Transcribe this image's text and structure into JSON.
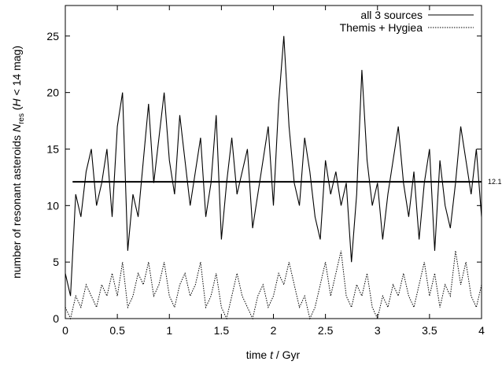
{
  "chart_data": {
    "type": "line",
    "x_label_parts": [
      "time ",
      "t",
      " / Gyr"
    ],
    "y_label_parts": [
      "number of resonant asteroids ",
      "N",
      "res",
      " (",
      "H",
      " < 14 mag)"
    ],
    "x": [
      0,
      0.05,
      0.1,
      0.15,
      0.2,
      0.25,
      0.3,
      0.35,
      0.4,
      0.45,
      0.5,
      0.55,
      0.6,
      0.65,
      0.7,
      0.75,
      0.8,
      0.85,
      0.9,
      0.95,
      1.0,
      1.05,
      1.1,
      1.15,
      1.2,
      1.25,
      1.3,
      1.35,
      1.4,
      1.45,
      1.5,
      1.55,
      1.6,
      1.65,
      1.7,
      1.75,
      1.8,
      1.85,
      1.9,
      1.95,
      2.0,
      2.05,
      2.1,
      2.15,
      2.2,
      2.25,
      2.3,
      2.35,
      2.4,
      2.45,
      2.5,
      2.55,
      2.6,
      2.65,
      2.7,
      2.75,
      2.8,
      2.85,
      2.9,
      2.95,
      3.0,
      3.05,
      3.1,
      3.15,
      3.2,
      3.25,
      3.3,
      3.35,
      3.4,
      3.45,
      3.5,
      3.55,
      3.6,
      3.65,
      3.7,
      3.75,
      3.8,
      3.85,
      3.9,
      3.95,
      4.0
    ],
    "series": [
      {
        "name": "all 3 sources",
        "color": "#000000",
        "dash": "solid",
        "values": [
          4,
          2,
          11,
          9,
          13,
          15,
          10,
          12,
          15,
          9,
          17,
          20,
          6,
          11,
          9,
          14,
          19,
          12,
          16,
          20,
          14,
          11,
          18,
          14,
          10,
          13,
          16,
          9,
          12,
          18,
          7,
          12,
          16,
          11,
          13,
          15,
          8,
          11,
          14,
          17,
          10,
          19,
          25,
          17,
          12,
          10,
          16,
          13,
          9,
          7,
          14,
          11,
          13,
          10,
          12,
          5,
          11,
          22,
          14,
          10,
          12,
          7,
          11,
          14,
          17,
          12,
          9,
          13,
          7,
          12,
          15,
          6,
          14,
          10,
          8,
          12,
          17,
          14,
          11,
          15,
          9
        ]
      },
      {
        "name": "Themis + Hygiea",
        "color": "#000000",
        "dash": "dotted",
        "values": [
          1,
          0,
          2,
          1,
          3,
          2,
          1,
          3,
          2,
          4,
          2,
          5,
          1,
          2,
          4,
          3,
          5,
          2,
          3,
          5,
          2,
          1,
          3,
          4,
          2,
          3,
          5,
          1,
          2,
          4,
          1,
          0,
          2,
          4,
          2,
          1,
          0,
          2,
          3,
          1,
          2,
          4,
          3,
          5,
          3,
          1,
          2,
          0,
          1,
          3,
          5,
          2,
          4,
          6,
          2,
          1,
          3,
          2,
          4,
          1,
          0,
          2,
          1,
          3,
          2,
          4,
          2,
          1,
          3,
          5,
          2,
          4,
          1,
          3,
          2,
          6,
          3,
          5,
          2,
          1,
          3
        ]
      }
    ],
    "mean_line": {
      "value": 12.1,
      "x_start": 0.07
    },
    "xlim": [
      0,
      4
    ],
    "ylim": [
      0,
      27.7
    ],
    "xticks": [
      0,
      0.5,
      1,
      1.5,
      2,
      2.5,
      3,
      3.5,
      4
    ],
    "yticks": [
      0,
      5,
      10,
      15,
      20,
      25
    ],
    "legend": "top-right"
  }
}
